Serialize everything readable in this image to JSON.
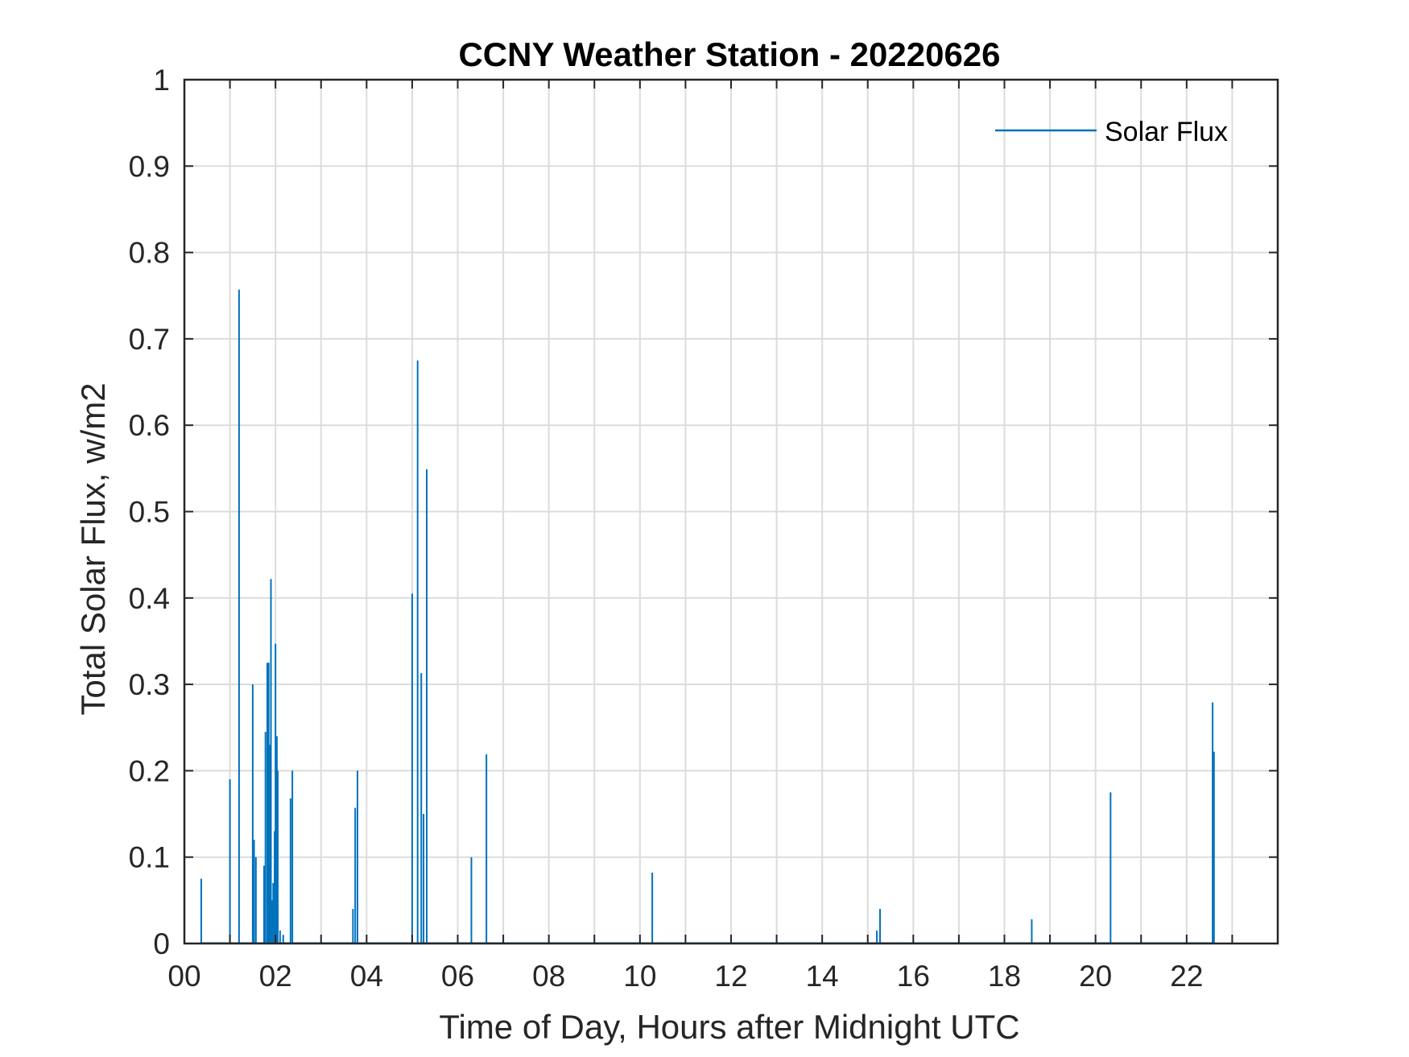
{
  "chart_data": {
    "type": "line",
    "title": "CCNY Weather Station - 20220626",
    "xlabel": "Time of Day, Hours after Midnight UTC",
    "ylabel": "Total Solar Flux, w/m2",
    "xlim": [
      0,
      24
    ],
    "ylim": [
      0,
      1
    ],
    "x_ticks": [
      0,
      2,
      4,
      6,
      8,
      10,
      12,
      14,
      16,
      18,
      20,
      22
    ],
    "x_tick_labels": [
      "00",
      "02",
      "04",
      "06",
      "08",
      "10",
      "12",
      "14",
      "16",
      "18",
      "20",
      "22"
    ],
    "x_minor_ticks": [
      1,
      3,
      5,
      7,
      9,
      11,
      13,
      15,
      17,
      19,
      21,
      23
    ],
    "y_ticks": [
      0,
      0.1,
      0.2,
      0.3,
      0.4,
      0.5,
      0.6,
      0.7,
      0.8,
      0.9,
      1
    ],
    "y_tick_labels": [
      "0",
      "0.1",
      "0.2",
      "0.3",
      "0.4",
      "0.5",
      "0.6",
      "0.7",
      "0.8",
      "0.9",
      "1"
    ],
    "grid": true,
    "legend_position": "top-right",
    "colors": {
      "series": "#0072BD",
      "grid": "#dcdcdc",
      "axis": "#262626"
    },
    "series": [
      {
        "name": "Solar Flux",
        "spikes": [
          [
            0.37,
            0.075
          ],
          [
            1.0,
            0.19
          ],
          [
            1.2,
            0.757
          ],
          [
            1.5,
            0.3
          ],
          [
            1.53,
            0.12
          ],
          [
            1.57,
            0.1
          ],
          [
            1.75,
            0.09
          ],
          [
            1.78,
            0.245
          ],
          [
            1.82,
            0.325
          ],
          [
            1.85,
            0.325
          ],
          [
            1.88,
            0.23
          ],
          [
            1.9,
            0.422
          ],
          [
            1.92,
            0.05
          ],
          [
            1.95,
            0.07
          ],
          [
            1.98,
            0.13
          ],
          [
            2.0,
            0.347
          ],
          [
            2.03,
            0.24
          ],
          [
            2.05,
            0.2
          ],
          [
            2.1,
            0.015
          ],
          [
            2.17,
            0.01
          ],
          [
            2.33,
            0.168
          ],
          [
            2.37,
            0.2
          ],
          [
            3.7,
            0.04
          ],
          [
            3.75,
            0.157
          ],
          [
            3.8,
            0.2
          ],
          [
            5.0,
            0.405
          ],
          [
            5.12,
            0.675
          ],
          [
            5.2,
            0.313
          ],
          [
            5.25,
            0.15
          ],
          [
            5.32,
            0.549
          ],
          [
            6.3,
            0.1
          ],
          [
            6.63,
            0.219
          ],
          [
            10.27,
            0.082
          ],
          [
            15.2,
            0.015
          ],
          [
            15.27,
            0.04
          ],
          [
            18.6,
            0.028
          ],
          [
            20.33,
            0.175
          ],
          [
            22.57,
            0.279
          ],
          [
            22.6,
            0.222
          ]
        ]
      }
    ]
  }
}
